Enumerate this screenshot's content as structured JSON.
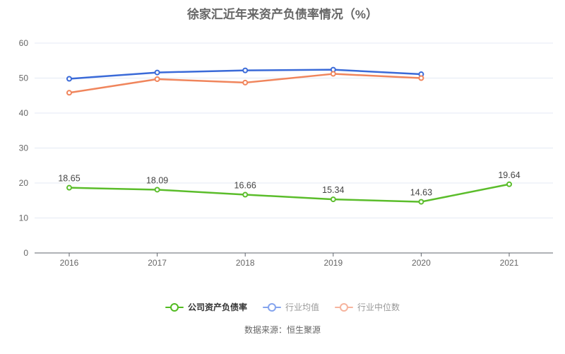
{
  "title": "徐家汇近年来资产负债率情况（%）",
  "source": "数据来源：恒生聚源",
  "colors": {
    "background": "#ffffff",
    "title": "#666666",
    "axis_line": "#60666e",
    "grid_line": "#e4e9f4",
    "tick_label": "#666666",
    "data_label": "#444444",
    "company_series": "#5bbd2b",
    "industry_mean_series": "#3a6ad8",
    "industry_median_series": "#f0855c"
  },
  "legend": [
    {
      "label": "公司资产负债率",
      "marker_color": "#52bb21",
      "text_color": "#333333",
      "bold": true
    },
    {
      "label": "行业均值",
      "marker_color": "#84a4ee",
      "text_color": "#999999",
      "bold": false
    },
    {
      "label": "行业中位数",
      "marker_color": "#f6b49e",
      "text_color": "#999999",
      "bold": false
    }
  ],
  "chart_data": {
    "type": "line",
    "title": "徐家汇近年来资产负债率情况（%）",
    "categories": [
      "2016",
      "2017",
      "2018",
      "2019",
      "2020",
      "2021"
    ],
    "series": [
      {
        "name": "公司资产负债率",
        "color": "#5bbd2b",
        "values": [
          18.65,
          18.09,
          16.66,
          15.34,
          14.63,
          19.64
        ],
        "labels_visible": true
      },
      {
        "name": "行业均值",
        "color": "#3a6ad8",
        "values": [
          49.8,
          51.6,
          52.2,
          52.4,
          51.1,
          null
        ],
        "labels_visible": false
      },
      {
        "name": "行业中位数",
        "color": "#f0855c",
        "values": [
          45.8,
          49.7,
          48.7,
          51.2,
          50.0,
          null
        ],
        "labels_visible": false
      }
    ],
    "xlabel": "",
    "ylabel": "",
    "ylim": [
      0,
      60
    ],
    "ytick_interval": 10,
    "grid": true,
    "legend_position": "bottom"
  }
}
